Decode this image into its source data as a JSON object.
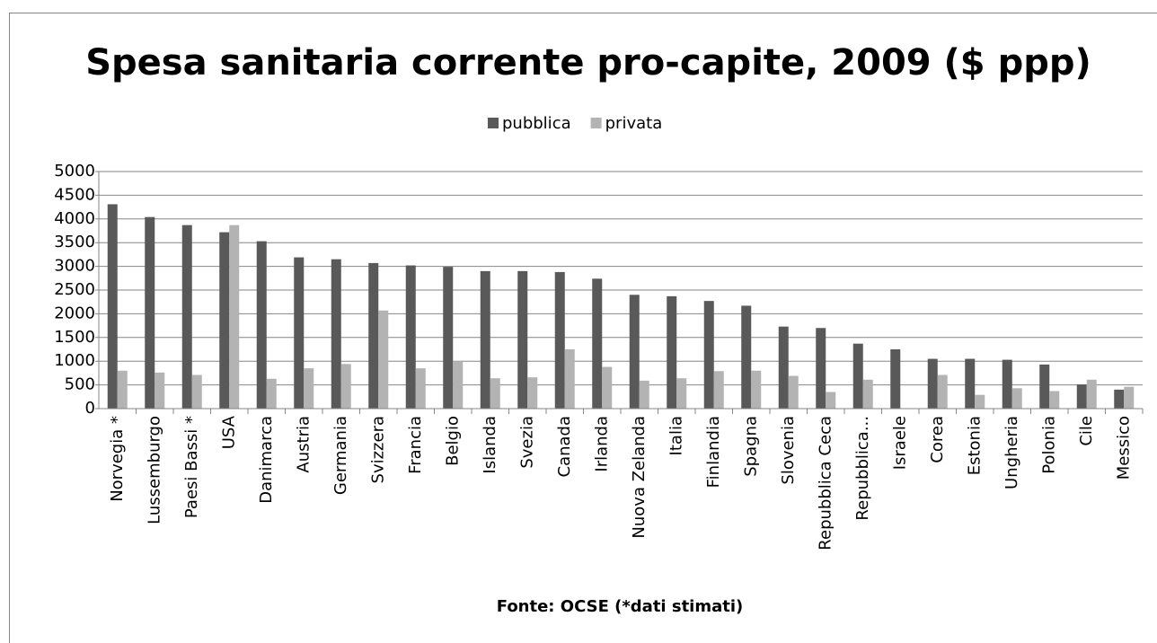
{
  "chart_data": {
    "type": "bar",
    "title": "Spesa sanitaria corrente pro-capite, 2009 ($ ppp)",
    "subtitle": "Fonte: OCSE (*dati stimati)",
    "categories": [
      "Norvegia *",
      "Lussemburgo",
      "Paesi Bassi *",
      "USA",
      "Danimarca",
      "Austria",
      "Germania",
      "Svizzera",
      "Francia",
      "Belgio",
      "Islanda",
      "Svezia",
      "Canada",
      "Irlanda",
      "Nuova Zelanda",
      "Italia",
      "Finlandia",
      "Spagna",
      "Slovenia",
      "Repubblica Ceca",
      "Repubblica...",
      "Israele",
      "Corea",
      "Estonia",
      "Ungheria",
      "Polonia",
      "Cile",
      "Messico"
    ],
    "series": [
      {
        "name": "pubblica",
        "color": "#595959",
        "values": [
          4310,
          4040,
          3870,
          3720,
          3530,
          3190,
          3150,
          3070,
          3020,
          2990,
          2900,
          2900,
          2880,
          2740,
          2400,
          2370,
          2270,
          2170,
          1730,
          1700,
          1370,
          1250,
          1050,
          1050,
          1030,
          930,
          510,
          400
        ]
      },
      {
        "name": "privata",
        "color": "#b3b3b3",
        "values": [
          800,
          760,
          710,
          3870,
          630,
          850,
          940,
          2070,
          850,
          1000,
          640,
          660,
          1250,
          880,
          590,
          640,
          790,
          800,
          690,
          350,
          610,
          null,
          710,
          290,
          430,
          370,
          610,
          460
        ]
      }
    ],
    "ylim": [
      0,
      5000
    ],
    "yticks": [
      0,
      500,
      1000,
      1500,
      2000,
      2500,
      3000,
      3500,
      4000,
      4500,
      5000
    ],
    "grid": true,
    "legend": "top"
  }
}
